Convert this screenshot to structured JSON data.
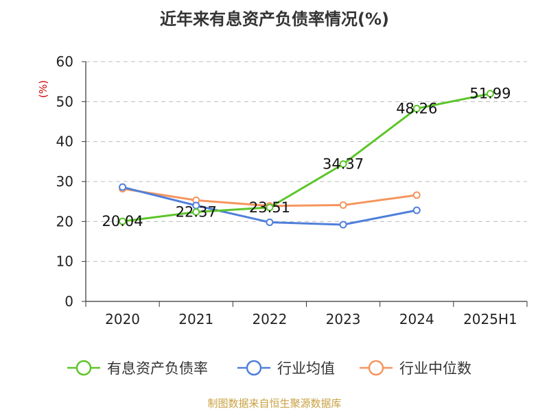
{
  "title": "近年来有息资产负债率情况(%)",
  "source_note": "制图数据来自恒生聚源数据库",
  "colors": {
    "series_1": "#5cc52a",
    "series_2": "#4f7fda",
    "series_3": "#f5955e",
    "unit": "#cc0000",
    "source": "#c8a042",
    "grid": "#bbbbbb"
  },
  "chart_data": {
    "type": "line",
    "title": "近年来有息资产负债率情况(%)",
    "ylabel": "(%)",
    "xlabel": "",
    "categories": [
      "2020",
      "2021",
      "2022",
      "2023",
      "2024",
      "2025H1"
    ],
    "ylim": [
      0,
      60
    ],
    "yticks": [
      0,
      10,
      20,
      30,
      40,
      50,
      60
    ],
    "grid": "horizontal-dashed",
    "legend_position": "bottom",
    "series": [
      {
        "name": "有息资产负债率",
        "color": "#5cc52a",
        "values": [
          20.04,
          22.37,
          23.51,
          34.37,
          48.26,
          51.99
        ],
        "show_labels": true
      },
      {
        "name": "行业均值",
        "color": "#4f7fda",
        "values": [
          28.6,
          24.0,
          19.8,
          19.2,
          22.8,
          null
        ],
        "show_labels": false
      },
      {
        "name": "行业中位数",
        "color": "#f5955e",
        "values": [
          28.2,
          25.3,
          23.9,
          24.1,
          26.6,
          null
        ],
        "show_labels": false
      }
    ]
  }
}
